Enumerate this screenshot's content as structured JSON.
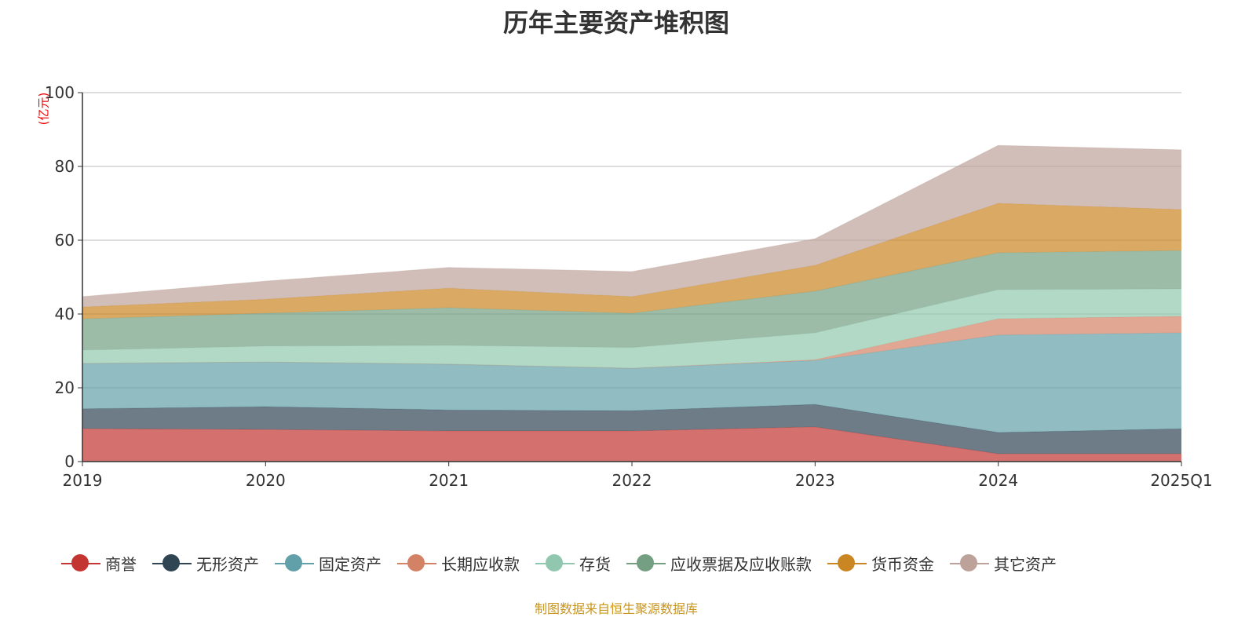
{
  "chart_data": {
    "type": "area",
    "stacked": true,
    "title": "历年主要资产堆积图",
    "ylabel": "(亿元)",
    "xlabel": "",
    "categories": [
      "2019",
      "2020",
      "2021",
      "2022",
      "2023",
      "2024",
      "2025Q1"
    ],
    "ylim": [
      0,
      100
    ],
    "yticks": [
      0,
      20,
      40,
      60,
      80,
      100
    ],
    "grid": true,
    "legend_position": "bottom",
    "series": [
      {
        "name": "商誉",
        "color": "#c23531",
        "values": [
          8.9,
          8.7,
          8.3,
          8.3,
          9.4,
          2.1,
          2.1
        ]
      },
      {
        "name": "无形资产",
        "color": "#2f4554",
        "values": [
          5.4,
          6.2,
          5.7,
          5.5,
          6.1,
          5.8,
          6.8
        ]
      },
      {
        "name": "固定资产",
        "color": "#61a0a8",
        "values": [
          12.3,
          12.1,
          12.4,
          11.5,
          11.9,
          26.4,
          26.0
        ]
      },
      {
        "name": "长期应收款",
        "color": "#d48265",
        "values": [
          0,
          0,
          0,
          0,
          0.2,
          4.4,
          4.5
        ]
      },
      {
        "name": "存货",
        "color": "#91c7ae",
        "values": [
          3.6,
          4.3,
          5.1,
          5.6,
          7.3,
          7.9,
          7.4
        ]
      },
      {
        "name": "应收票据及应收账款",
        "color": "#749f83",
        "values": [
          8.5,
          8.9,
          10.2,
          9.3,
          11.3,
          10.0,
          10.4
        ]
      },
      {
        "name": "货币资金",
        "color": "#ca8622",
        "values": [
          3.2,
          3.8,
          5.3,
          4.5,
          7.0,
          13.4,
          11.1
        ]
      },
      {
        "name": "其它资产",
        "color": "#bda29a",
        "values": [
          2.8,
          4.9,
          5.6,
          6.8,
          7.2,
          15.7,
          16.2
        ]
      }
    ]
  },
  "footer": "制图数据来自恒生聚源数据库"
}
